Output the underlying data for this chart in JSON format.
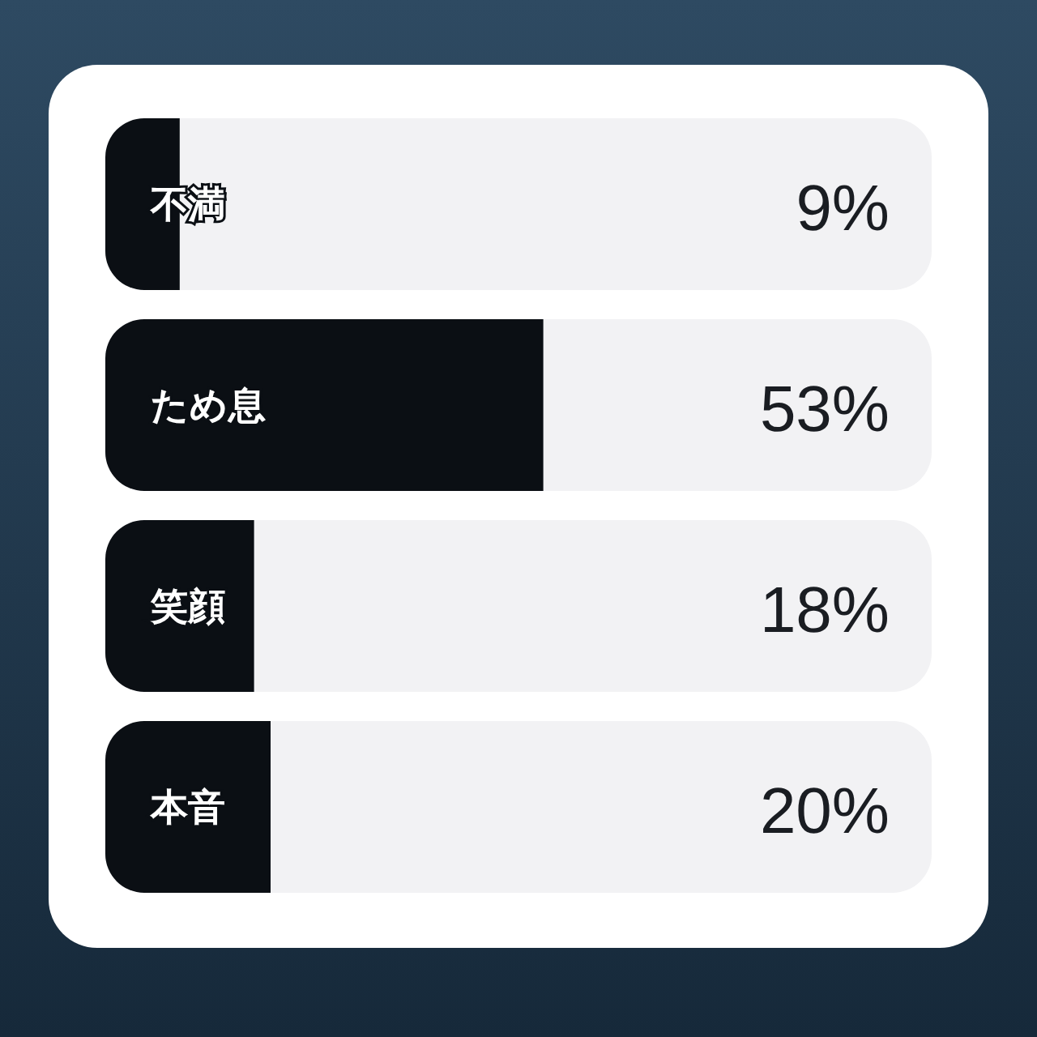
{
  "chart_data": {
    "type": "bar",
    "orientation": "horizontal",
    "categories": [
      "不満",
      "ため息",
      "笑顔",
      "本音"
    ],
    "values": [
      9,
      53,
      18,
      20
    ],
    "color": "#0b0f14",
    "xlim": [
      0,
      100
    ],
    "value_labels": [
      "9%",
      "53%",
      "18%",
      "20%"
    ]
  }
}
